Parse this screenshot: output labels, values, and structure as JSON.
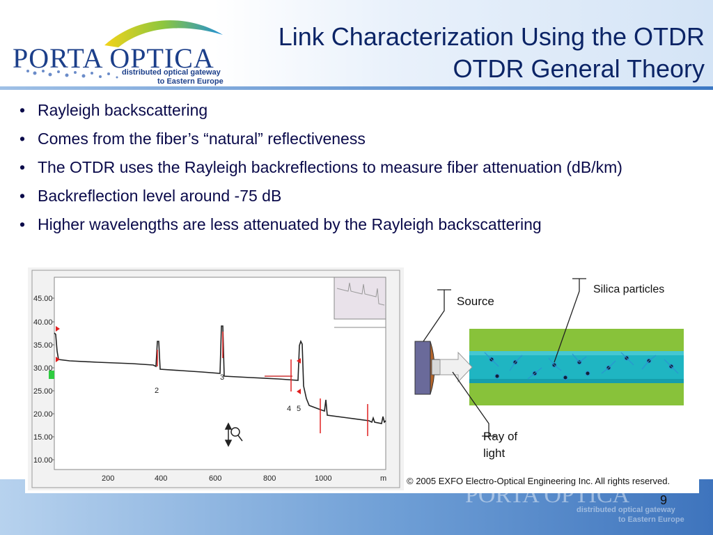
{
  "logo": {
    "name": "PORTA OPTICA",
    "tagline_line1": "distributed optical gateway",
    "tagline_line2": "to Eastern Europe"
  },
  "title": {
    "line1": "Link Characterization Using the OTDR",
    "line2": "OTDR General Theory"
  },
  "bullets": [
    "Rayleigh backscattering",
    "Comes from the fiber’s “natural” reflectiveness",
    "The OTDR uses the Rayleigh backreflections to measure fiber attenuation (dB/km)",
    "Backreflection level around -75 dB",
    "Higher wavelengths are less attenuated by the Rayleigh backscattering"
  ],
  "otdr_trace": {
    "y_ticks": [
      "45.00",
      "40.00",
      "35.00",
      "30.00",
      "25.00",
      "20.00",
      "15.00",
      "10.00"
    ],
    "x_ticks": [
      "200",
      "400",
      "600",
      "800",
      "1000",
      "m"
    ],
    "event_labels": [
      "2",
      "3",
      "4",
      "5"
    ]
  },
  "diagram": {
    "source_label": "Source",
    "particles_label": "Silica particles",
    "ray_label_line1": "Ray of",
    "ray_label_line2": "light",
    "copyright": "© 2005 EXFO Electro-Optical Engineering Inc. All rights reserved."
  },
  "page_number": "9",
  "colors": {
    "title": "#0b2466",
    "bullet_text": "#0a0a4a",
    "trace": "#222222",
    "marker": "#e02020",
    "fiber_cladding": "#88c23a",
    "fiber_core": "#1fb5c2"
  }
}
